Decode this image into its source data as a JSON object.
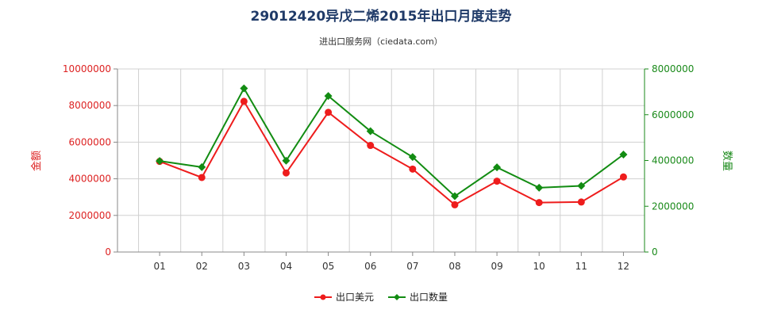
{
  "chart_data": {
    "type": "line",
    "title": "29012420异戊二烯2015年出口月度走势",
    "subtitle": "进出口服务网（ciedata.com）",
    "categories": [
      "01",
      "02",
      "03",
      "04",
      "05",
      "06",
      "07",
      "08",
      "09",
      "10",
      "11",
      "12"
    ],
    "y_left": {
      "label": "金额",
      "range": [
        0,
        10000000
      ],
      "ticks": [
        "0",
        "2000000",
        "4000000",
        "6000000",
        "8000000",
        "10000000"
      ],
      "color": "#dd2222"
    },
    "y_right": {
      "label": "数量",
      "range": [
        0,
        8000000
      ],
      "ticks": [
        "0",
        "2000000",
        "4000000",
        "6000000",
        "8000000"
      ],
      "color": "#1a8a1a"
    },
    "series": [
      {
        "name": "出口美元",
        "axis": "left",
        "color": "#ee1c1c",
        "marker": "circle",
        "values": [
          4950000,
          4070000,
          8230000,
          4320000,
          7630000,
          5820000,
          4530000,
          2580000,
          3870000,
          2700000,
          2730000,
          4100000
        ]
      },
      {
        "name": "出口数量",
        "axis": "right",
        "color": "#128c12",
        "marker": "diamond",
        "values": [
          3980000,
          3710000,
          7150000,
          3990000,
          6820000,
          5280000,
          4150000,
          2440000,
          3700000,
          2810000,
          2890000,
          4260000
        ]
      }
    ],
    "grid": true,
    "legend": "bottom-center"
  }
}
